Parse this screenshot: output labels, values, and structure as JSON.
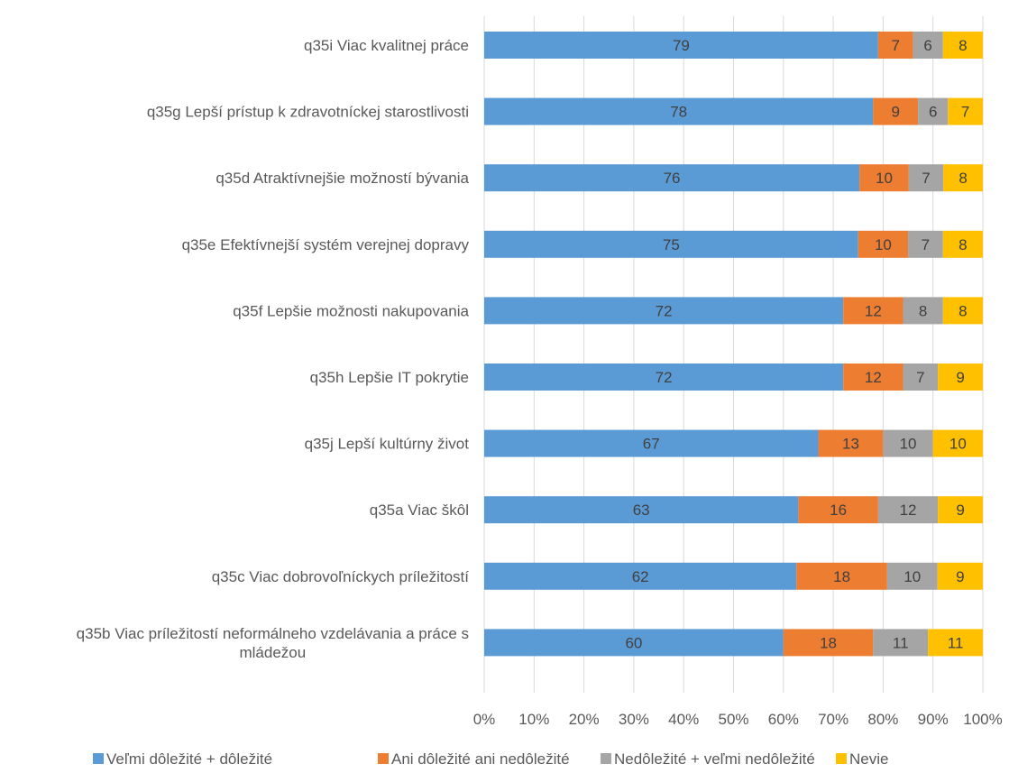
{
  "chart_data": {
    "type": "bar",
    "orientation": "horizontal",
    "stacked": true,
    "percent_stacked": true,
    "categories": [
      "q35i Viac kvalitnej práce",
      "q35g Lepší prístup k zdravotníckej starostlivosti",
      "q35d Atraktívnejšie možností bývania",
      "q35e Efektívnejší systém verejnej dopravy",
      "q35f Lepšie možnosti nakupovania",
      "q35h Lepšie IT pokrytie",
      "q35j Lepší kultúrny život",
      "q35a Viac škôl",
      "q35c Viac dobrovoľníckych príležitostí",
      "q35b Viac príležitostí neformálneho vzdelávania a práce s mládežou"
    ],
    "category_lines": [
      [
        "q35i Viac kvalitnej práce"
      ],
      [
        "q35g Lepší prístup k zdravotníckej starostlivosti"
      ],
      [
        "q35d Atraktívnejšie možností bývania"
      ],
      [
        "q35e Efektívnejší systém verejnej dopravy"
      ],
      [
        "q35f Lepšie možnosti nakupovania"
      ],
      [
        "q35h Lepšie IT pokrytie"
      ],
      [
        "q35j Lepší kultúrny život"
      ],
      [
        "q35a Viac škôl"
      ],
      [
        "q35c Viac dobrovoľníckych príležitostí"
      ],
      [
        "q35b Viac príležitostí neformálneho vzdelávania a práce s",
        "mládežou"
      ]
    ],
    "series": [
      {
        "name": "Veľmi dôležité + dôležité",
        "color": "#5b9bd5",
        "values": [
          79,
          78,
          76,
          75,
          72,
          72,
          67,
          63,
          62,
          60
        ]
      },
      {
        "name": "Ani dôležité ani nedôležité",
        "color": "#ed7d31",
        "values": [
          7,
          9,
          10,
          10,
          12,
          12,
          13,
          16,
          18,
          18
        ]
      },
      {
        "name": "Nedôležité + veľmi nedôležité",
        "color": "#a5a5a5",
        "values": [
          6,
          6,
          7,
          7,
          8,
          7,
          10,
          12,
          10,
          11
        ]
      },
      {
        "name": "Nevie",
        "color": "#ffc000",
        "values": [
          8,
          7,
          8,
          8,
          8,
          9,
          10,
          9,
          9,
          11
        ]
      }
    ],
    "xlim": [
      0,
      100
    ],
    "x_ticks": [
      "0%",
      "10%",
      "20%",
      "30%",
      "40%",
      "50%",
      "60%",
      "70%",
      "80%",
      "90%",
      "100%"
    ],
    "grid": true,
    "legend_position": "bottom",
    "title": "",
    "xlabel": "",
    "ylabel": ""
  }
}
